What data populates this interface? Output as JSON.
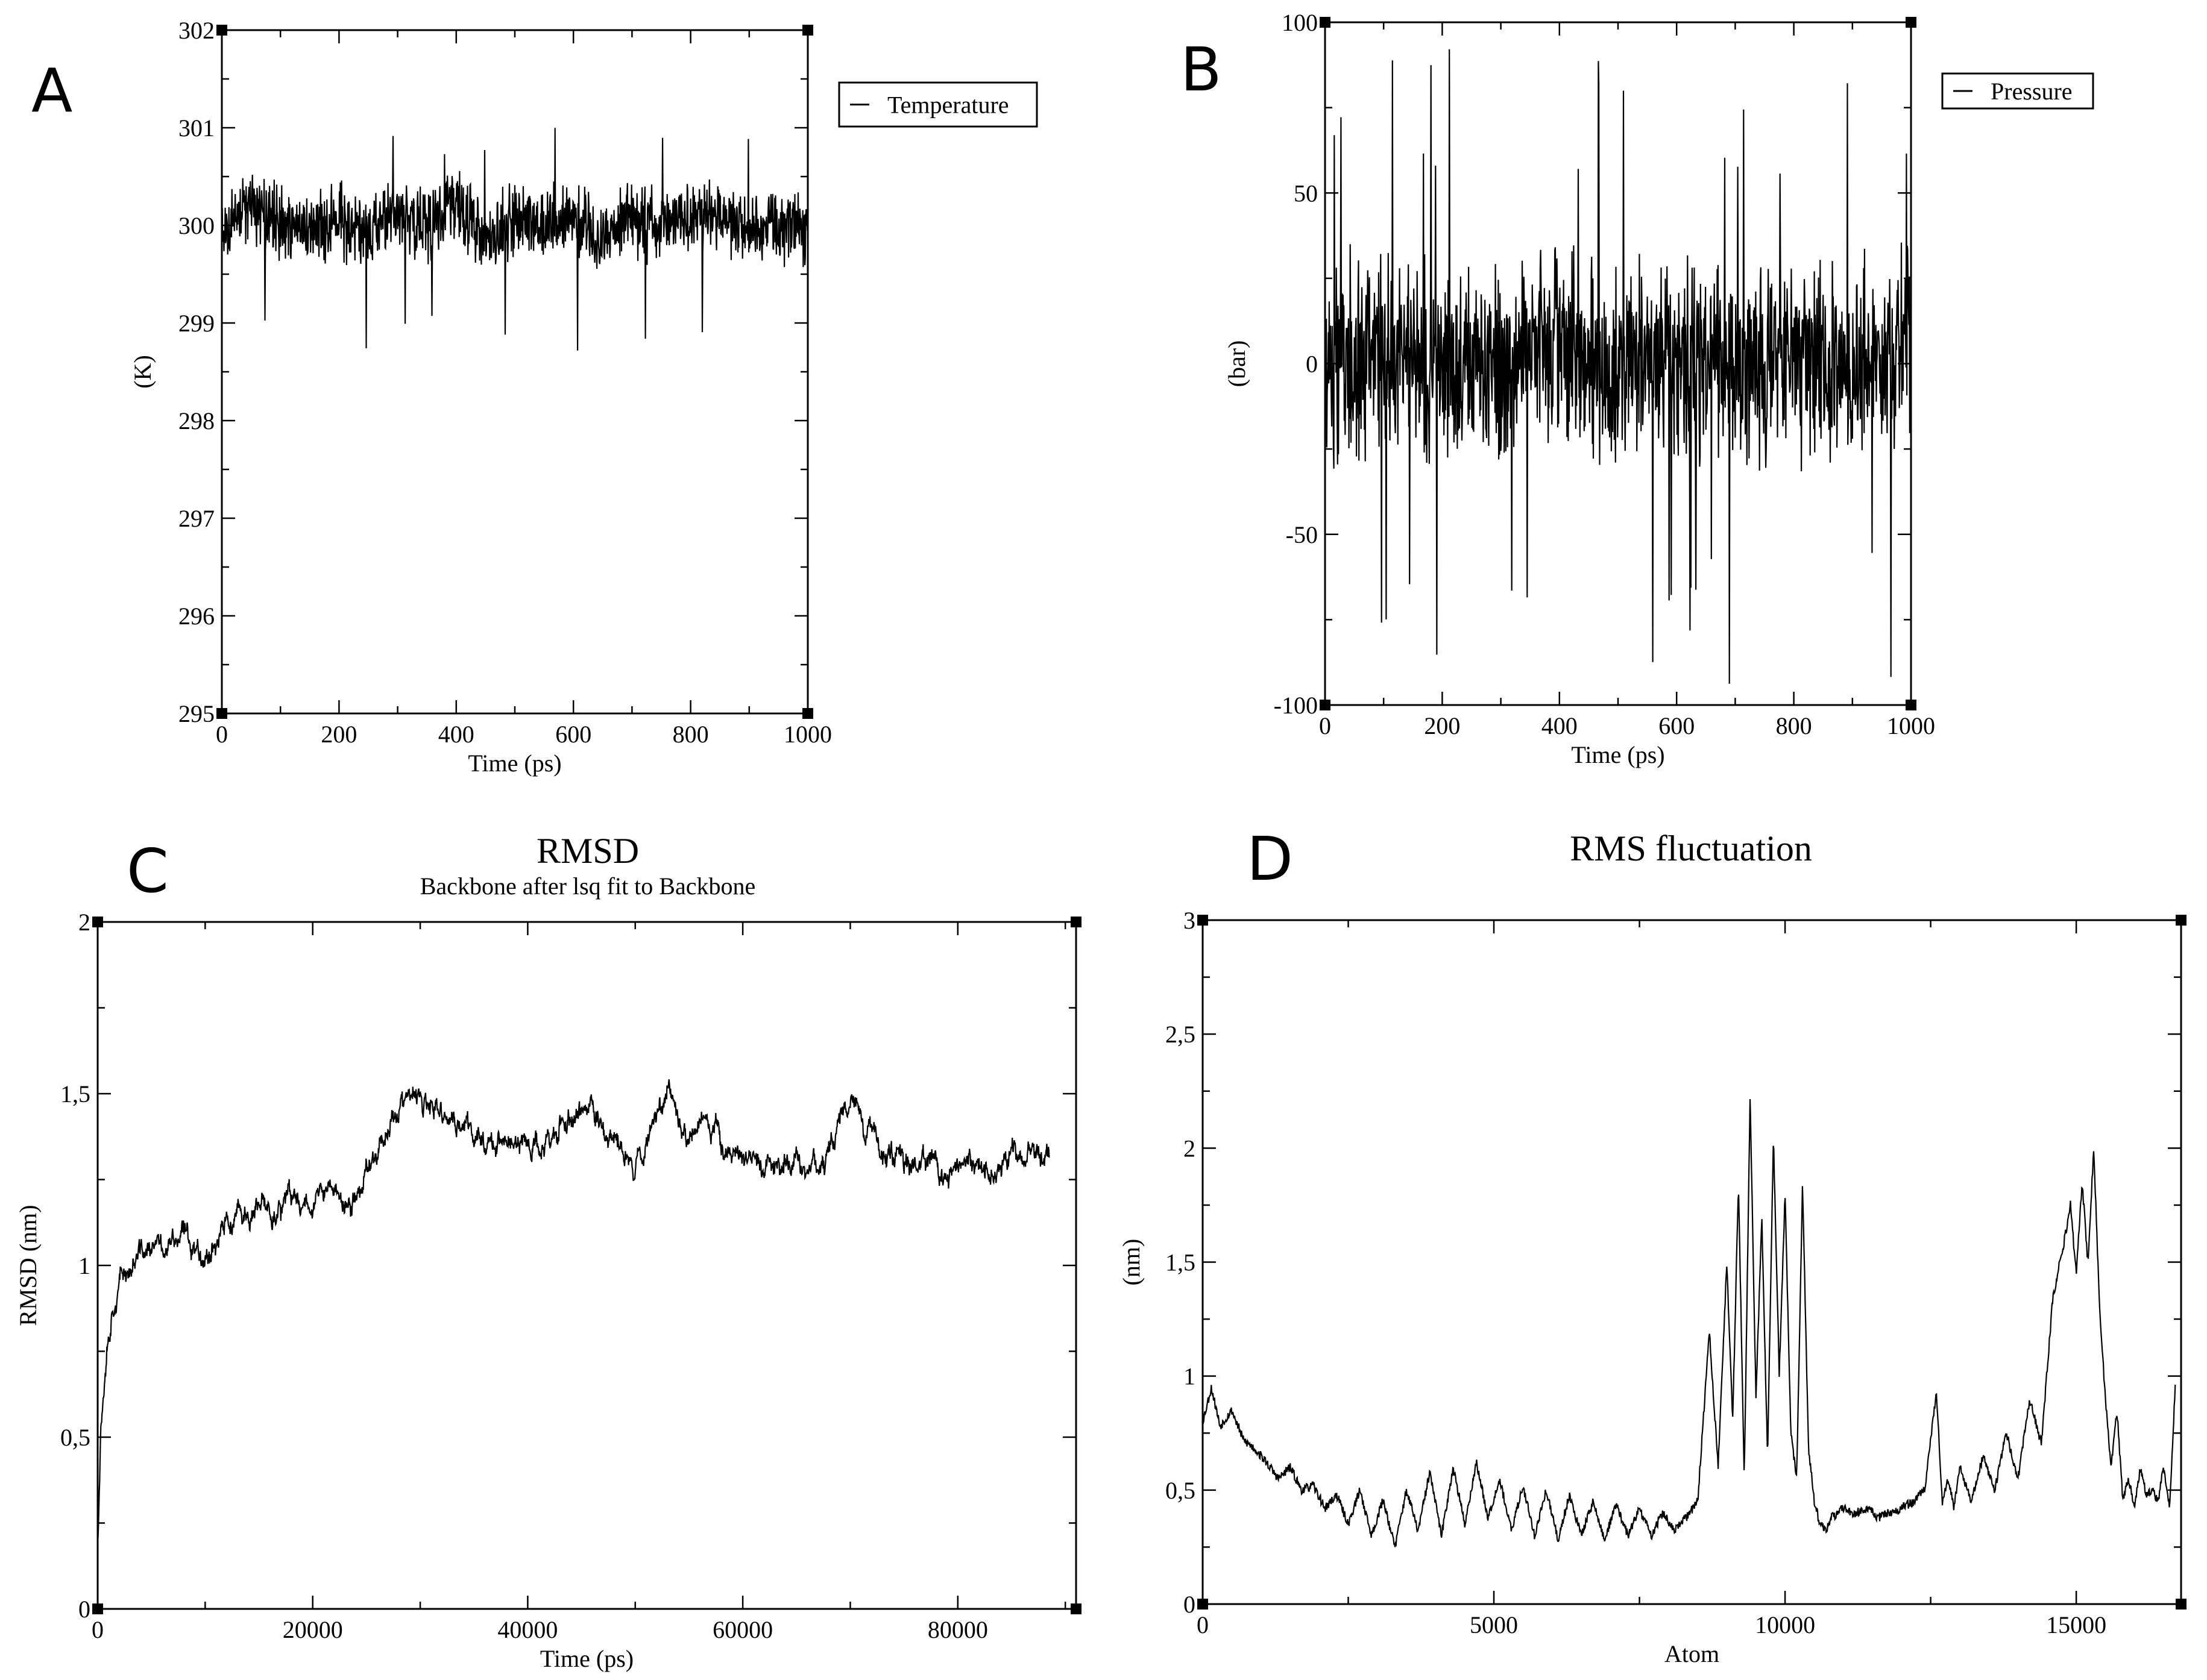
{
  "chart_data": [
    {
      "panel": "A",
      "type": "line",
      "title": "",
      "subtitle": "",
      "xlabel": "Time (ps)",
      "ylabel": "(K)",
      "xlim": [
        0,
        1000
      ],
      "ylim": [
        295,
        302
      ],
      "xticks": [
        0,
        200,
        400,
        600,
        800,
        1000
      ],
      "yticks": [
        295,
        296,
        297,
        298,
        299,
        300,
        301,
        302
      ],
      "xtick_labels": [
        "0",
        "200",
        "400",
        "600",
        "800",
        "1000"
      ],
      "ytick_labels": [
        "295",
        "296",
        "297",
        "298",
        "299",
        "300",
        "301",
        "302"
      ],
      "legend": "top-right",
      "series": [
        {
          "name": "Temperature",
          "x": [
            0,
            50,
            100,
            150,
            200,
            250,
            300,
            350,
            400,
            450,
            500,
            550,
            600,
            650,
            700,
            750,
            800,
            850,
            900,
            950,
            1000
          ],
          "values": [
            300.0,
            300.3,
            300.0,
            299.9,
            300.1,
            299.9,
            300.2,
            300.0,
            300.4,
            299.7,
            300.1,
            300.0,
            300.2,
            299.8,
            300.1,
            300.0,
            300.2,
            300.1,
            300.0,
            299.9,
            300.0
          ],
          "mean": 300.0,
          "noise_amplitude": 0.45,
          "min": 298.7,
          "max": 301.0
        }
      ]
    },
    {
      "panel": "B",
      "type": "line",
      "title": "",
      "subtitle": "",
      "xlabel": "Time (ps)",
      "ylabel": "(bar)",
      "xlim": [
        0,
        1000
      ],
      "ylim": [
        -100,
        100
      ],
      "xticks": [
        0,
        200,
        400,
        600,
        800,
        1000
      ],
      "yticks": [
        -100,
        -50,
        0,
        50,
        100
      ],
      "xtick_labels": [
        "0",
        "200",
        "400",
        "600",
        "800",
        "1000"
      ],
      "ytick_labels": [
        "-100",
        "-50",
        "0",
        "50",
        "100"
      ],
      "legend": "top-right",
      "series": [
        {
          "name": "Pressure",
          "x": [
            0,
            100,
            200,
            300,
            400,
            500,
            600,
            700,
            800,
            900,
            1000
          ],
          "values": [
            0,
            5,
            -3,
            2,
            6,
            -2,
            4,
            0,
            3,
            -1,
            5
          ],
          "mean": 0,
          "noise_amplitude": 35,
          "min": -100,
          "max": 93
        }
      ]
    },
    {
      "panel": "C",
      "type": "line",
      "title": "RMSD",
      "subtitle": "Backbone after lsq fit to Backbone",
      "xlabel": "Time (ps)",
      "ylabel": "RMSD (nm)",
      "xlim": [
        0,
        91000
      ],
      "ylim": [
        0,
        2
      ],
      "xticks": [
        0,
        20000,
        40000,
        60000,
        80000
      ],
      "yticks": [
        0,
        0.5,
        1,
        1.5,
        2
      ],
      "xtick_labels": [
        "0",
        "20000",
        "40000",
        "60000",
        "80000"
      ],
      "ytick_labels": [
        "0",
        "0,5",
        "1",
        "1,5",
        "2"
      ],
      "legend": "none",
      "series": [
        {
          "name": "RMSD",
          "x": [
            0,
            300,
            800,
            1500,
            2500,
            4000,
            6000,
            8000,
            10000,
            12000,
            14000,
            16000,
            18000,
            20000,
            22000,
            23500,
            25000,
            26500,
            28000,
            29500,
            31000,
            33000,
            35000,
            37000,
            39000,
            41000,
            43000,
            45000,
            46500,
            48000,
            50000,
            51500,
            53000,
            54500,
            56000,
            58000,
            60000,
            62000,
            64000,
            66000,
            68000,
            70000,
            71500,
            73000,
            75000,
            77000,
            79000,
            81000,
            83000,
            85000,
            87000,
            88500
          ],
          "values": [
            0.2,
            0.55,
            0.78,
            0.92,
            0.98,
            1.03,
            1.05,
            1.08,
            1.04,
            1.12,
            1.14,
            1.16,
            1.18,
            1.2,
            1.22,
            1.15,
            1.28,
            1.38,
            1.46,
            1.48,
            1.44,
            1.42,
            1.38,
            1.37,
            1.35,
            1.34,
            1.4,
            1.45,
            1.43,
            1.35,
            1.3,
            1.4,
            1.55,
            1.38,
            1.42,
            1.36,
            1.32,
            1.28,
            1.3,
            1.28,
            1.34,
            1.5,
            1.42,
            1.33,
            1.32,
            1.3,
            1.26,
            1.27,
            1.28,
            1.3,
            1.34,
            1.31
          ],
          "noise_amplitude": 0.035
        }
      ]
    },
    {
      "panel": "D",
      "type": "line",
      "title": "RMS fluctuation",
      "subtitle": "",
      "xlabel": "Atom",
      "ylabel": "(nm)",
      "xlim": [
        0,
        16800
      ],
      "ylim": [
        0,
        3
      ],
      "xticks": [
        0,
        5000,
        10000,
        15000
      ],
      "yticks": [
        0,
        0.5,
        1,
        1.5,
        2,
        2.5,
        3
      ],
      "xtick_labels": [
        "0",
        "5000",
        "10000",
        "15000"
      ],
      "ytick_labels": [
        "0",
        "0,5",
        "1",
        "1,5",
        "2",
        "2,5",
        "3"
      ],
      "legend": "none",
      "series": [
        {
          "name": "RMSF",
          "x": [
            0,
            150,
            300,
            500,
            700,
            900,
            1100,
            1300,
            1500,
            1700,
            1900,
            2100,
            2300,
            2500,
            2700,
            2900,
            3100,
            3300,
            3500,
            3700,
            3900,
            4100,
            4300,
            4500,
            4700,
            4900,
            5100,
            5300,
            5500,
            5700,
            5900,
            6100,
            6300,
            6500,
            6700,
            6900,
            7100,
            7300,
            7500,
            7700,
            7900,
            8100,
            8300,
            8500,
            8700,
            8850,
            9000,
            9100,
            9200,
            9300,
            9400,
            9500,
            9600,
            9700,
            9800,
            9900,
            10000,
            10100,
            10200,
            10300,
            10400,
            10500,
            10600,
            10700,
            10800,
            10900,
            11000,
            11200,
            11400,
            11600,
            11800,
            12000,
            12200,
            12400,
            12600,
            12700,
            12800,
            12900,
            13000,
            13200,
            13400,
            13600,
            13800,
            14000,
            14200,
            14400,
            14600,
            14800,
            14900,
            15000,
            15100,
            15200,
            15300,
            15400,
            15500,
            15600,
            15700,
            15800,
            15900,
            16000,
            16100,
            16200,
            16300,
            16400,
            16500,
            16600,
            16700
          ],
          "values": [
            0.8,
            0.95,
            0.78,
            0.85,
            0.72,
            0.68,
            0.62,
            0.55,
            0.6,
            0.5,
            0.52,
            0.42,
            0.48,
            0.35,
            0.5,
            0.3,
            0.46,
            0.25,
            0.5,
            0.32,
            0.58,
            0.3,
            0.6,
            0.35,
            0.62,
            0.38,
            0.55,
            0.32,
            0.52,
            0.3,
            0.5,
            0.28,
            0.48,
            0.3,
            0.45,
            0.28,
            0.44,
            0.3,
            0.42,
            0.3,
            0.4,
            0.32,
            0.38,
            0.45,
            1.2,
            0.6,
            1.5,
            0.8,
            1.85,
            0.55,
            2.25,
            0.9,
            1.7,
            0.65,
            2.05,
            1.0,
            1.8,
            0.75,
            0.55,
            1.85,
            0.7,
            0.45,
            0.35,
            0.32,
            0.38,
            0.4,
            0.42,
            0.4,
            0.42,
            0.38,
            0.4,
            0.42,
            0.45,
            0.5,
            0.93,
            0.45,
            0.55,
            0.42,
            0.6,
            0.45,
            0.65,
            0.5,
            0.75,
            0.55,
            0.9,
            0.7,
            1.35,
            1.6,
            1.75,
            1.45,
            1.85,
            1.5,
            2.0,
            1.3,
            0.9,
            0.6,
            0.85,
            0.45,
            0.55,
            0.42,
            0.6,
            0.48,
            0.5,
            0.45,
            0.6,
            0.42,
            0.95
          ]
        }
      ]
    }
  ],
  "panel_labels": [
    "A",
    "B",
    "C",
    "D"
  ]
}
